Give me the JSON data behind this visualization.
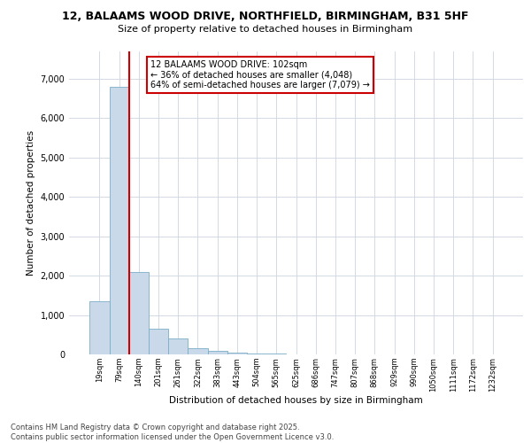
{
  "title_line1": "12, BALAAMS WOOD DRIVE, NORTHFIELD, BIRMINGHAM, B31 5HF",
  "title_line2": "Size of property relative to detached houses in Birmingham",
  "xlabel": "Distribution of detached houses by size in Birmingham",
  "ylabel": "Number of detached properties",
  "categories": [
    "19sqm",
    "79sqm",
    "140sqm",
    "201sqm",
    "261sqm",
    "322sqm",
    "383sqm",
    "443sqm",
    "504sqm",
    "565sqm",
    "625sqm",
    "686sqm",
    "747sqm",
    "807sqm",
    "868sqm",
    "929sqm",
    "990sqm",
    "1050sqm",
    "1111sqm",
    "1172sqm",
    "1232sqm"
  ],
  "values": [
    1350,
    6800,
    2100,
    650,
    400,
    150,
    80,
    40,
    30,
    15,
    8,
    4,
    2,
    2,
    1,
    1,
    1,
    0,
    0,
    0,
    0
  ],
  "bar_color": "#c9d9ea",
  "bar_edge_color": "#7aaec8",
  "vline_color": "#cc0000",
  "vline_x": 1.5,
  "annotation_text": "12 BALAAMS WOOD DRIVE: 102sqm\n← 36% of detached houses are smaller (4,048)\n64% of semi-detached houses are larger (7,079) →",
  "annotation_box_color": "#ffffff",
  "annotation_box_edge": "#cc0000",
  "footer_text": "Contains HM Land Registry data © Crown copyright and database right 2025.\nContains public sector information licensed under the Open Government Licence v3.0.",
  "ylim": [
    0,
    7700
  ],
  "yticks": [
    0,
    1000,
    2000,
    3000,
    4000,
    5000,
    6000,
    7000
  ],
  "bg_color": "#ffffff",
  "grid_color": "#ccd5e0"
}
